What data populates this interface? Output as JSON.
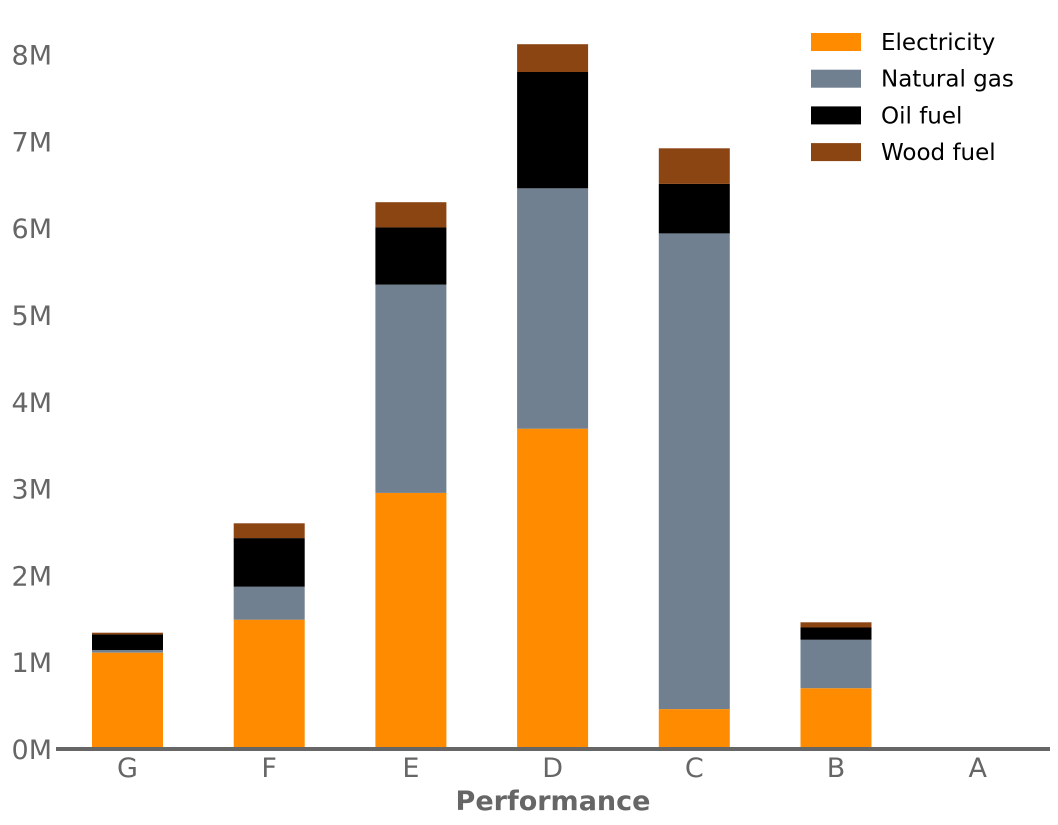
{
  "chart_data": {
    "type": "bar",
    "stacked": true,
    "categories": [
      "G",
      "F",
      "E",
      "D",
      "C",
      "B",
      "A"
    ],
    "series": [
      {
        "name": "Electricity",
        "color": "#ff8c00",
        "values": [
          1110000,
          1490000,
          2950000,
          3690000,
          460000,
          700000,
          20000
        ]
      },
      {
        "name": "Natural gas",
        "color": "#708090",
        "values": [
          30000,
          380000,
          2400000,
          2770000,
          5480000,
          560000,
          0
        ]
      },
      {
        "name": "Oil fuel",
        "color": "#000000",
        "values": [
          180000,
          560000,
          660000,
          1340000,
          570000,
          140000,
          0
        ]
      },
      {
        "name": "Wood fuel",
        "color": "#8b4513",
        "values": [
          20000,
          170000,
          290000,
          320000,
          410000,
          60000,
          0
        ]
      }
    ],
    "xlabel": "Performance",
    "ylabel": "",
    "ylim": [
      0,
      8300000
    ],
    "yticks": [
      0,
      1000000,
      2000000,
      3000000,
      4000000,
      5000000,
      6000000,
      7000000,
      8000000
    ],
    "ytick_labels": [
      "0M",
      "1M",
      "2M",
      "3M",
      "4M",
      "5M",
      "6M",
      "7M",
      "8M"
    ],
    "grid": false,
    "legend_position": "top-right",
    "axis_color": "#666666"
  }
}
